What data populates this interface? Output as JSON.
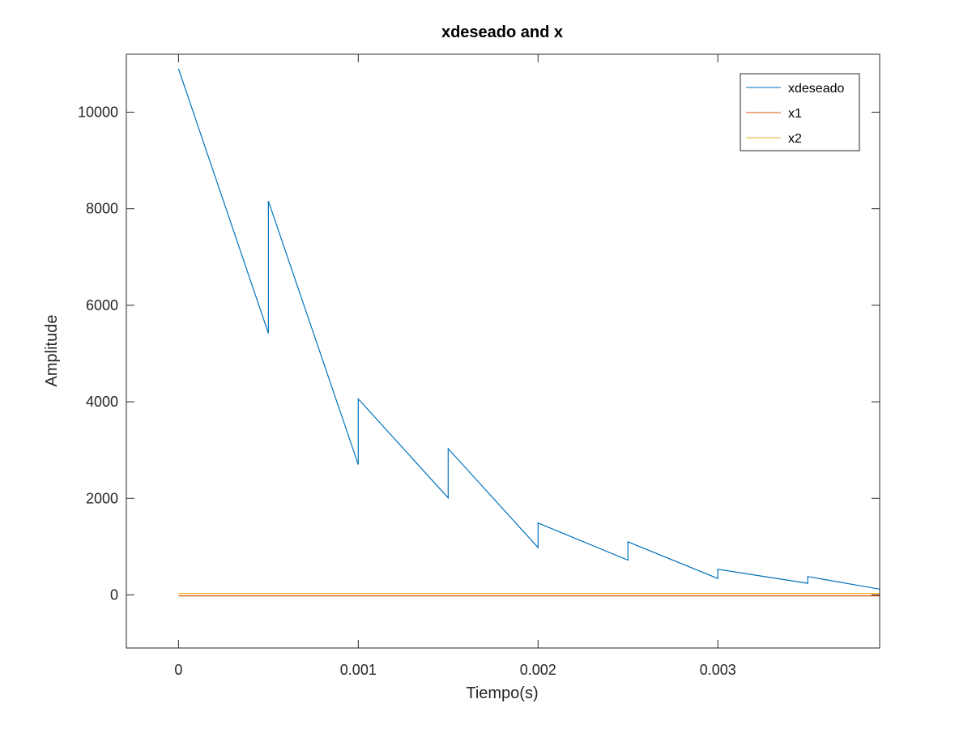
{
  "chart_data": {
    "type": "line",
    "title": "xdeseado and x",
    "xlabel": "Tiempo(s)",
    "ylabel": "Amplitude",
    "xlim": [
      -0.00029,
      0.0039
    ],
    "ylim": [
      -1100,
      11200
    ],
    "xticks": [
      0,
      0.001,
      0.002,
      0.003
    ],
    "xtick_labels": [
      "0",
      "0.001",
      "0.002",
      "0.003"
    ],
    "yticks": [
      0,
      2000,
      4000,
      6000,
      8000,
      10000
    ],
    "ytick_labels": [
      "0",
      "2000",
      "4000",
      "6000",
      "8000",
      "10000"
    ],
    "grid": false,
    "legend_position": "top-right",
    "series": [
      {
        "name": "xdeseado",
        "color": "#0072BD",
        "x": [
          0,
          0.0005,
          0.0005,
          0.001,
          0.001,
          0.0015,
          0.0015,
          0.002,
          0.002,
          0.0025,
          0.0025,
          0.003,
          0.003,
          0.0035,
          0.0035,
          0.0039
        ],
        "y": [
          10900,
          5420,
          8160,
          2700,
          4060,
          2010,
          3030,
          980,
          1490,
          720,
          1100,
          340,
          530,
          240,
          380,
          120
        ]
      },
      {
        "name": "x1",
        "color": "#D95319",
        "x": [
          0,
          0.0039
        ],
        "y": [
          -20,
          -20
        ]
      },
      {
        "name": "x2",
        "color": "#EDB120",
        "x": [
          0,
          0.0039
        ],
        "y": [
          30,
          30
        ]
      }
    ]
  }
}
